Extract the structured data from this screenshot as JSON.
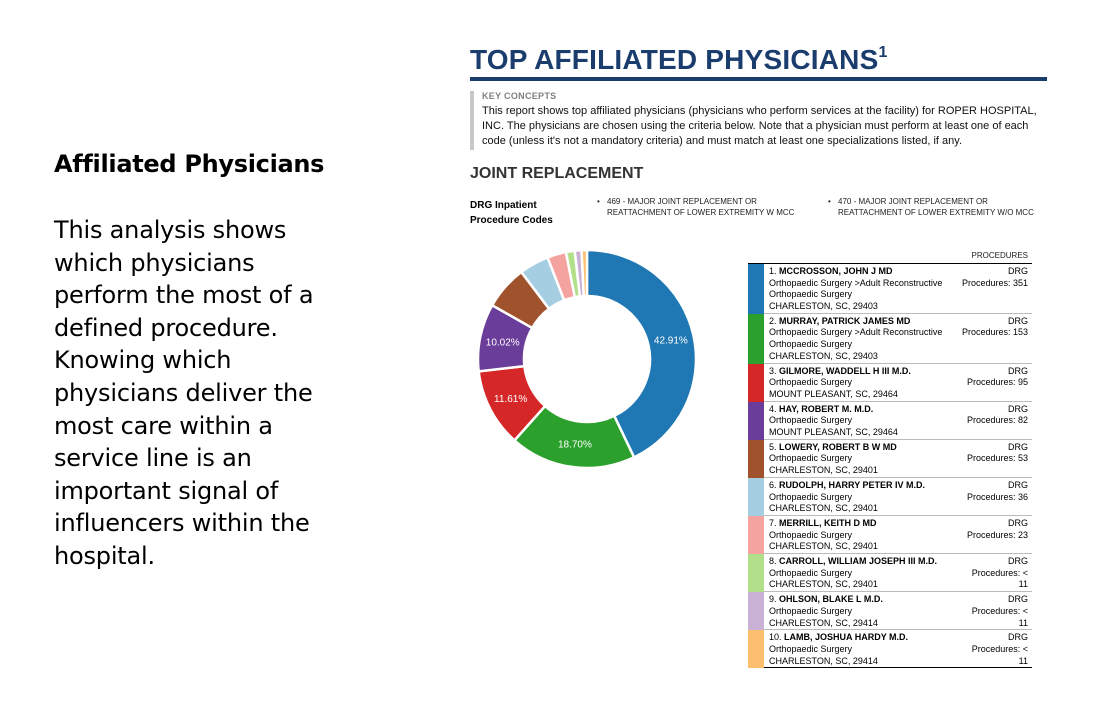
{
  "left": {
    "title": "Affiliated Physicians",
    "body": "This analysis shows which physicians perform the most of a defined procedure. Knowing which physicians deliver the most care within a service line is an important signal of influencers within the hospital."
  },
  "report": {
    "title": "TOP AFFILIATED PHYSICIANS",
    "title_sup": "1",
    "key_concepts_label": "KEY CONCEPTS",
    "key_concepts_text": "This report shows top affiliated physicians (physicians who perform services at the facility) for ROPER HOSPITAL, INC. The physicians are chosen using the criteria below. Note that a physician must perform at least one of each code (unless it's not a mandatory criteria) and must match at least one specializations listed, if any.",
    "section_title": "JOINT REPLACEMENT",
    "drg_label": "DRG Inpatient Procedure Codes",
    "drg_codes": [
      "469 - MAJOR JOINT REPLACEMENT OR REATTACHMENT OF LOWER EXTREMITY W MCC",
      "470 - MAJOR JOINT REPLACEMENT OR REATTACHMENT OF LOWER EXTREMITY W/O MCC"
    ],
    "procedures_header": "PROCEDURES",
    "bullet": "•"
  },
  "chart_data": {
    "type": "pie",
    "donut": true,
    "categories": [
      "1. MCCROSSON, JOHN J MD",
      "2. MURRAY, PATRICK JAMES MD",
      "3. GILMORE, WADDELL H III M.D.",
      "4. HAY, ROBERT M. M.D.",
      "5. LOWERY, ROBERT B W MD",
      "6. RUDOLPH, HARRY PETER IV M.D.",
      "7. MERRILL, KEITH D MD",
      "8. CARROLL, WILLIAM JOSEPH III M.D.",
      "9. OHLSON, BLAKE L M.D.",
      "10. LAMB, JOSHUA HARDY M.D."
    ],
    "values": [
      42.91,
      18.7,
      11.61,
      10.02,
      6.5,
      4.4,
      2.8,
      1.3,
      1.0,
      0.8
    ],
    "value_labels": [
      "42.91%",
      "18.70%",
      "11.61%",
      "10.02%",
      "",
      "",
      "",
      "",
      "",
      ""
    ],
    "colors": [
      "#1f77b4",
      "#2ca02c",
      "#d62728",
      "#6a3d9a",
      "#a0522d",
      "#a6cee3",
      "#f4a3a0",
      "#b2df8a",
      "#cab2d6",
      "#fdbf6f"
    ]
  },
  "physicians": [
    {
      "rank": "1.",
      "name": "MCCROSSON, JOHN J MD",
      "lines": [
        "Orthopaedic Surgery >Adult Reconstructive",
        "Orthopaedic Surgery",
        "CHARLESTON, SC, 29403"
      ],
      "type": "DRG",
      "procedures": [
        "Procedures: 351"
      ],
      "color": "#1f77b4"
    },
    {
      "rank": "2.",
      "name": "MURRAY, PATRICK JAMES MD",
      "lines": [
        "Orthopaedic Surgery >Adult Reconstructive",
        "Orthopaedic Surgery",
        "CHARLESTON, SC, 29403"
      ],
      "type": "DRG",
      "procedures": [
        "Procedures: 153"
      ],
      "color": "#2ca02c"
    },
    {
      "rank": "3.",
      "name": "GILMORE, WADDELL H III M.D.",
      "lines": [
        "Orthopaedic Surgery",
        "MOUNT PLEASANT, SC, 29464"
      ],
      "type": "DRG",
      "procedures": [
        "Procedures: 95"
      ],
      "color": "#d62728"
    },
    {
      "rank": "4.",
      "name": "HAY, ROBERT M. M.D.",
      "lines": [
        "Orthopaedic Surgery",
        "MOUNT PLEASANT, SC, 29464"
      ],
      "type": "DRG",
      "procedures": [
        "Procedures: 82"
      ],
      "color": "#6a3d9a"
    },
    {
      "rank": "5.",
      "name": "LOWERY, ROBERT B W MD",
      "lines": [
        "Orthopaedic Surgery",
        "CHARLESTON, SC, 29401"
      ],
      "type": "DRG",
      "procedures": [
        "Procedures: 53"
      ],
      "color": "#a0522d"
    },
    {
      "rank": "6.",
      "name": "RUDOLPH, HARRY PETER IV M.D.",
      "lines": [
        "Orthopaedic Surgery",
        "CHARLESTON, SC, 29401"
      ],
      "type": "DRG",
      "procedures": [
        "Procedures: 36"
      ],
      "color": "#a6cee3"
    },
    {
      "rank": "7.",
      "name": "MERRILL, KEITH D MD",
      "lines": [
        "Orthopaedic Surgery",
        "CHARLESTON, SC, 29401"
      ],
      "type": "DRG",
      "procedures": [
        "Procedures: 23"
      ],
      "color": "#f4a3a0"
    },
    {
      "rank": "8.",
      "name": "CARROLL, WILLIAM JOSEPH III M.D.",
      "lines": [
        "Orthopaedic Surgery",
        "CHARLESTON, SC, 29401"
      ],
      "type": "DRG",
      "procedures": [
        "Procedures: <",
        "11"
      ],
      "color": "#b2df8a"
    },
    {
      "rank": "9.",
      "name": "OHLSON, BLAKE L M.D.",
      "lines": [
        "Orthopaedic Surgery",
        "CHARLESTON, SC, 29414"
      ],
      "type": "DRG",
      "procedures": [
        "Procedures: <",
        "11"
      ],
      "color": "#cab2d6"
    },
    {
      "rank": "10.",
      "name": "LAMB, JOSHUA HARDY M.D.",
      "lines": [
        "Orthopaedic Surgery",
        "CHARLESTON, SC, 29414"
      ],
      "type": "DRG",
      "procedures": [
        "Procedures: <",
        "11"
      ],
      "color": "#fdbf6f"
    }
  ]
}
